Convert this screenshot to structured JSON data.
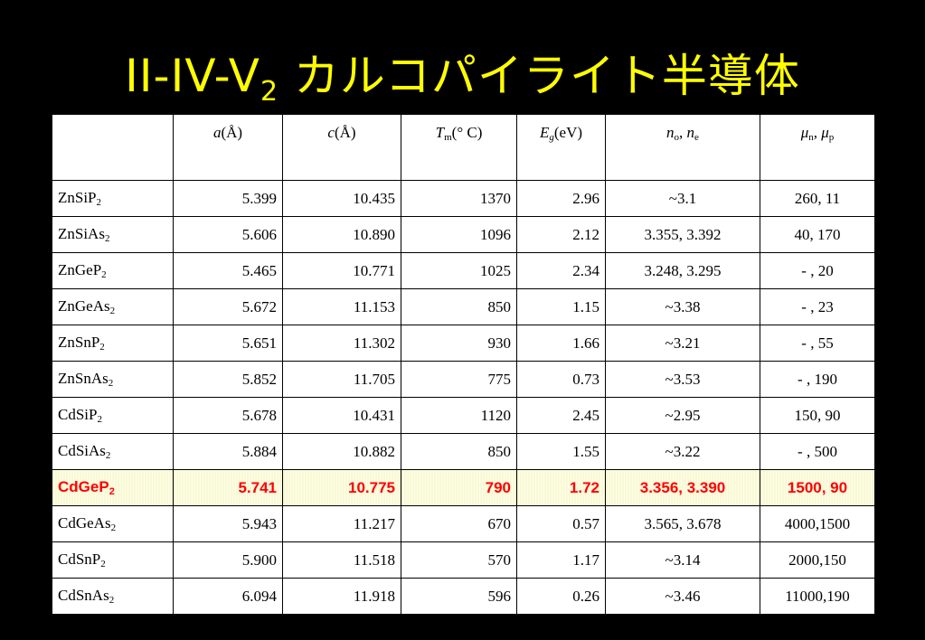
{
  "title": {
    "main": "II-IV-V",
    "sub": "2",
    "rest": " カルコパイライト半導体"
  },
  "colors": {
    "background": "#000000",
    "title": "#ffff00",
    "highlight_text": "#ff0000",
    "highlight_bg": "#ffffe0"
  },
  "headers": [
    {
      "sym": "",
      "sub": "",
      "text": ""
    },
    {
      "sym": "a",
      "sub": "",
      "text": "(Å)"
    },
    {
      "sym": "c",
      "sub": "",
      "text": "(Å)"
    },
    {
      "sym": "T",
      "sub": "m",
      "text": "(° C)"
    },
    {
      "sym": "E",
      "sub": "g",
      "text": "(eV)"
    },
    {
      "sym": "n",
      "sub": "o",
      "text": ", ",
      "sym2": "n",
      "sub2": "e"
    },
    {
      "sym": "μ",
      "sub": "n",
      "text": ", ",
      "sym2": "μ",
      "sub2": "p"
    }
  ],
  "rows": [
    {
      "formula": "ZnSiP",
      "sub": "2",
      "a": "5.399",
      "c": "10.435",
      "tm": "1370",
      "eg": "2.96",
      "n": "~3.1",
      "mu": "260,  11"
    },
    {
      "formula": "ZnSiAs",
      "sub": "2",
      "a": "5.606",
      "c": "10.890",
      "tm": "1096",
      "eg": "2.12",
      "n": "3.355, 3.392",
      "mu": "40, 170"
    },
    {
      "formula": "ZnGeP",
      "sub": "2",
      "a": "5.465",
      "c": "10.771",
      "tm": "1025",
      "eg": "2.34",
      "n": "3.248, 3.295",
      "mu": "- , 20"
    },
    {
      "formula": "ZnGeAs",
      "sub": "2",
      "a": "5.672",
      "c": "11.153",
      "tm": "850",
      "eg": "1.15",
      "n": "~3.38",
      "mu": "- , 23"
    },
    {
      "formula": "ZnSnP",
      "sub": "2",
      "a": "5.651",
      "c": "11.302",
      "tm": "930",
      "eg": "1.66",
      "n": "~3.21",
      "mu": "- , 55"
    },
    {
      "formula": "ZnSnAs",
      "sub": "2",
      "a": "5.852",
      "c": "11.705",
      "tm": "775",
      "eg": "0.73",
      "n": "~3.53",
      "mu": "- , 190"
    },
    {
      "formula": "CdSiP",
      "sub": "2",
      "a": "5.678",
      "c": "10.431",
      "tm": "1120",
      "eg": "2.45",
      "n": "~2.95",
      "mu": "150, 90"
    },
    {
      "formula": "CdSiAs",
      "sub": "2",
      "a": "5.884",
      "c": "10.882",
      "tm": "850",
      "eg": "1.55",
      "n": "~3.22",
      "mu": "- , 500"
    },
    {
      "formula": "CdGeP",
      "sub": "2",
      "a": "5.741",
      "c": "10.775",
      "tm": "790",
      "eg": "1.72",
      "n": "3.356, 3.390",
      "mu": "1500, 90",
      "highlight": true
    },
    {
      "formula": "CdGeAs",
      "sub": "2",
      "a": "5.943",
      "c": "11.217",
      "tm": "670",
      "eg": "0.57",
      "n": "3.565, 3.678",
      "mu": "4000,1500"
    },
    {
      "formula": "CdSnP",
      "sub": "2",
      "a": "5.900",
      "c": "11.518",
      "tm": "570",
      "eg": "1.17",
      "n": "~3.14",
      "mu": "2000,150"
    },
    {
      "formula": "CdSnAs",
      "sub": "2",
      "a": "6.094",
      "c": "11.918",
      "tm": "596",
      "eg": "0.26",
      "n": "~3.46",
      "mu": "11000,190"
    }
  ]
}
